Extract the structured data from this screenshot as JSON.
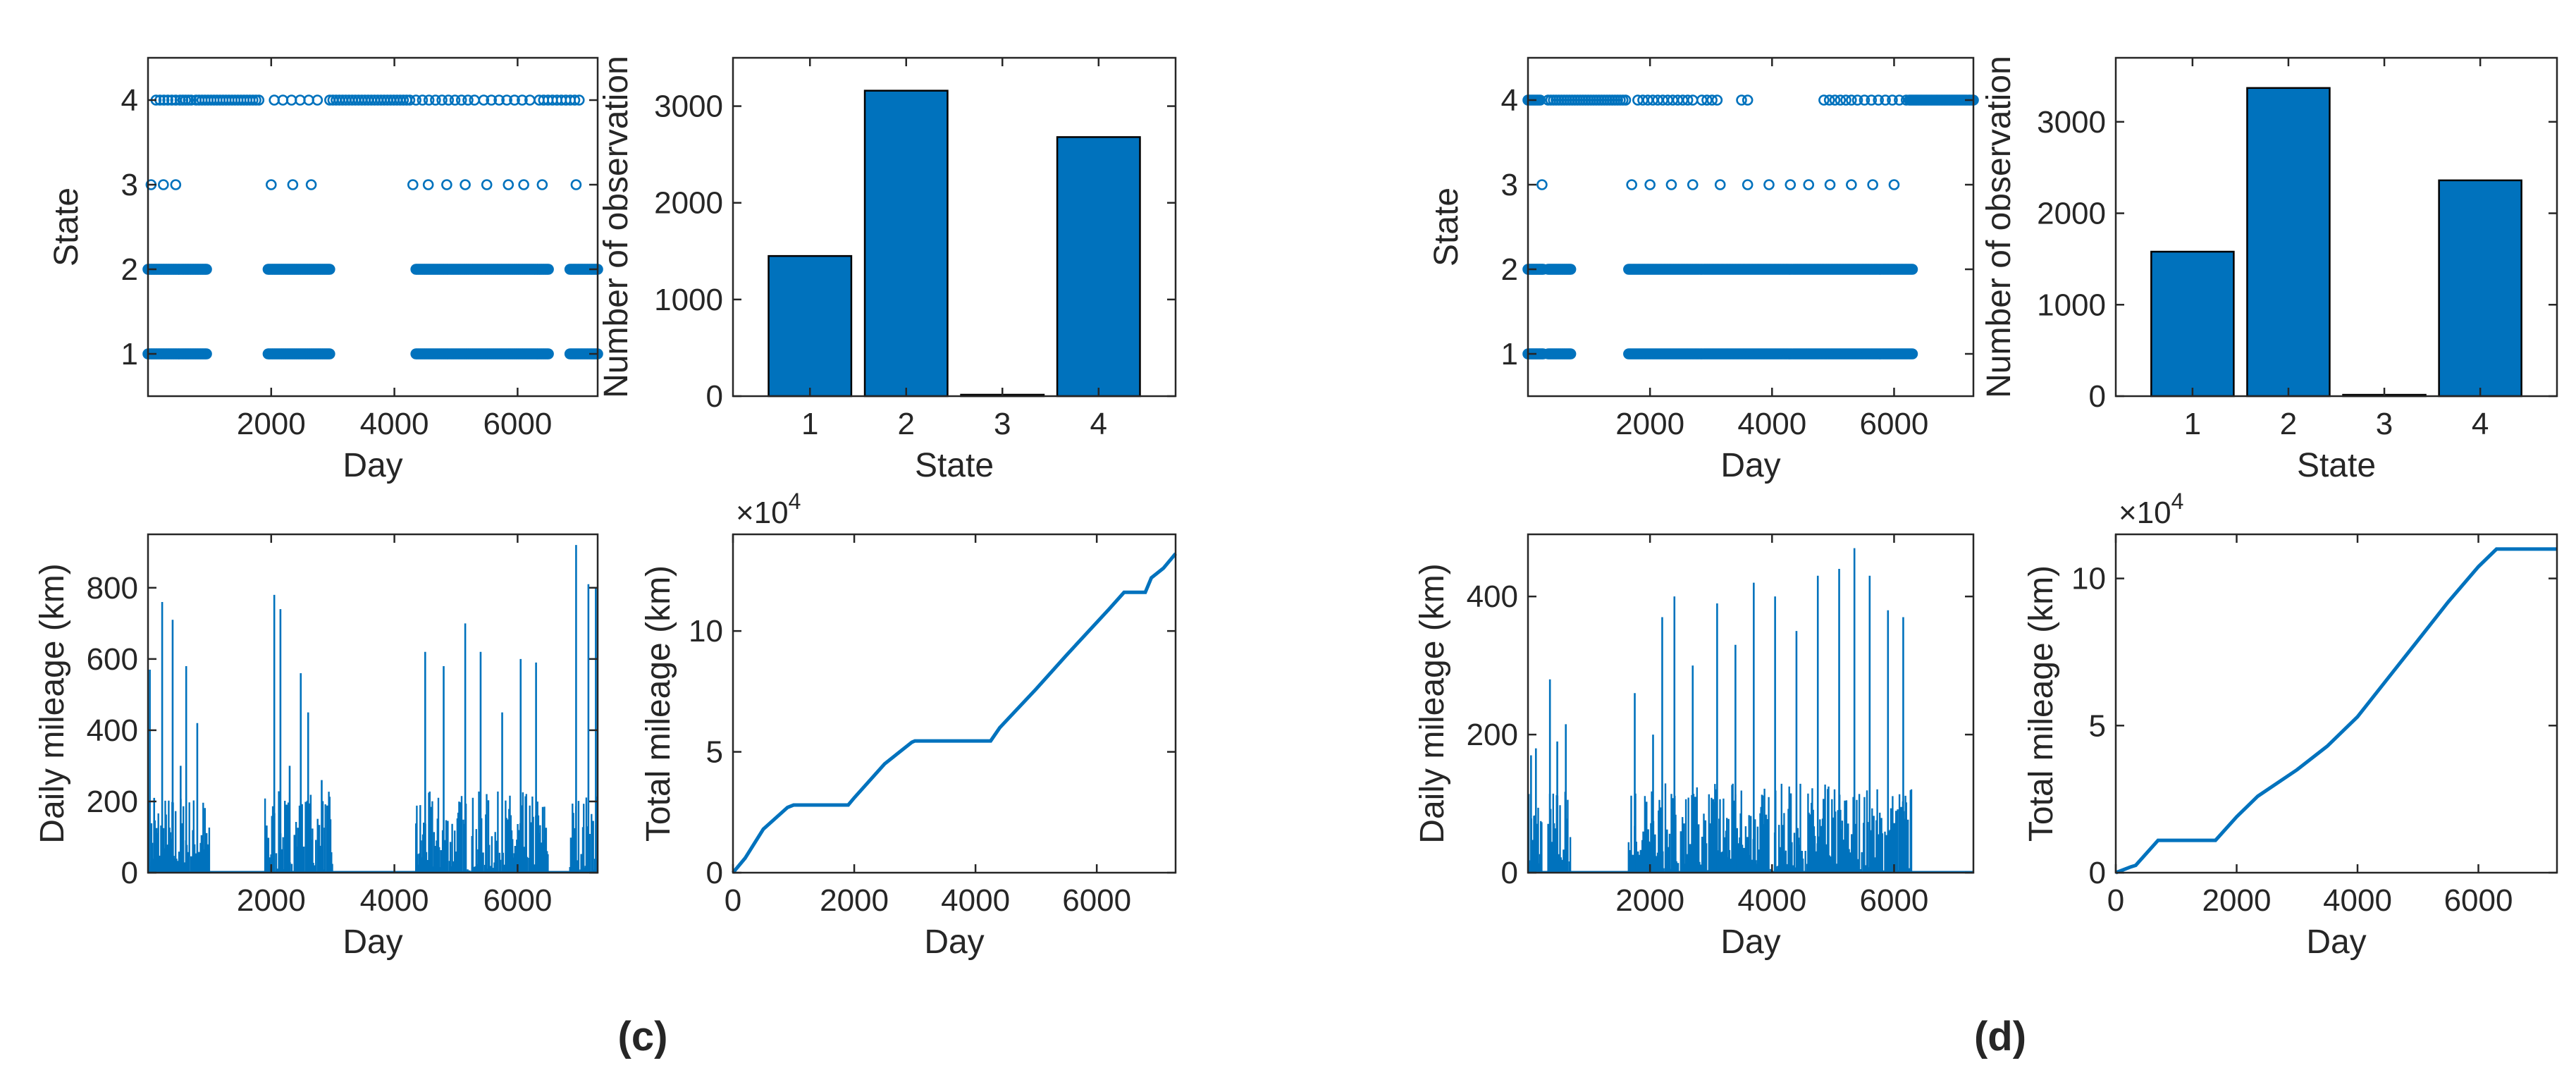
{
  "colors": {
    "series": "#0072BD",
    "axis": "#262626",
    "bar_edge": "#000000"
  },
  "panels": [
    {
      "label": "(c)",
      "chart_data": [
        {
          "type": "scatter",
          "xlabel": "Day",
          "ylabel": "State",
          "xlim": [
            0,
            7300
          ],
          "ylim": [
            0.5,
            4.5
          ],
          "xticks": [
            2000,
            4000,
            6000
          ],
          "yticks": [
            1,
            2,
            3,
            4
          ],
          "marker": "open-circle",
          "clusters": [
            {
              "state": 4,
              "runs": [
                [
                  130,
                  450,
                  6
                ],
                [
                  520,
                  700,
                  5
                ],
                [
                  780,
                  1800,
                  22
                ],
                [
                  2050,
                  2750,
                  6
                ],
                [
                  2950,
                  4250,
                  26
                ],
                [
                  4350,
                  5300,
                  10
                ],
                [
                  5450,
                  6200,
                  7
                ],
                [
                  6350,
                  7000,
                  10
                ]
              ]
            },
            {
              "state": 3,
              "runs": [
                [
                  50,
                  50,
                  1
                ],
                [
                  250,
                  250,
                  1
                ],
                [
                  450,
                  450,
                  1
                ],
                [
                  2000,
                  2000,
                  1
                ],
                [
                  2350,
                  2350,
                  1
                ],
                [
                  2650,
                  2650,
                  1
                ],
                [
                  4300,
                  4300,
                  1
                ],
                [
                  4550,
                  4550,
                  1
                ],
                [
                  4850,
                  4850,
                  1
                ],
                [
                  5150,
                  5150,
                  1
                ],
                [
                  5500,
                  5500,
                  1
                ],
                [
                  5850,
                  5850,
                  1
                ],
                [
                  6100,
                  6100,
                  1
                ],
                [
                  6400,
                  6400,
                  1
                ],
                [
                  6950,
                  6950,
                  1
                ]
              ]
            },
            {
              "state": 2,
              "runs": [
                [
                  0,
                  950,
                  60
                ],
                [
                  1950,
                  2950,
                  60
                ],
                [
                  4350,
                  6500,
                  120
                ],
                [
                  6850,
                  7300,
                  25
                ]
              ]
            },
            {
              "state": 1,
              "runs": [
                [
                  0,
                  950,
                  60
                ],
                [
                  1950,
                  2950,
                  60
                ],
                [
                  4350,
                  6500,
                  120
                ],
                [
                  6850,
                  7300,
                  25
                ]
              ]
            }
          ]
        },
        {
          "type": "bar",
          "xlabel": "State",
          "ylabel": "Number of observation",
          "categories": [
            "1",
            "2",
            "3",
            "4"
          ],
          "values": [
            1450,
            3160,
            15,
            2680
          ],
          "ylim": [
            0,
            3500
          ],
          "yticks": [
            0,
            1000,
            2000,
            3000
          ]
        },
        {
          "type": "bar",
          "xlabel": "Day",
          "ylabel": "Daily mileage (km)",
          "xlim": [
            0,
            7300
          ],
          "ylim": [
            0,
            950
          ],
          "xticks": [
            2000,
            4000,
            6000
          ],
          "yticks": [
            0,
            200,
            400,
            600,
            800
          ],
          "active_ranges": [
            [
              0,
              1000
            ],
            [
              1900,
              3000
            ],
            [
              4350,
              6500
            ],
            [
              6850,
              7300
            ]
          ],
          "peaks": [
            [
              30,
              570
            ],
            [
              100,
              210
            ],
            [
              230,
              760
            ],
            [
              400,
              710
            ],
            [
              530,
              300
            ],
            [
              620,
              580
            ],
            [
              800,
              420
            ],
            [
              2050,
              780
            ],
            [
              2150,
              740
            ],
            [
              2300,
              300
            ],
            [
              2480,
              560
            ],
            [
              2600,
              450
            ],
            [
              2820,
              260
            ],
            [
              4500,
              620
            ],
            [
              4800,
              580
            ],
            [
              5150,
              700
            ],
            [
              5400,
              620
            ],
            [
              5750,
              450
            ],
            [
              6050,
              600
            ],
            [
              6300,
              590
            ],
            [
              6950,
              920
            ],
            [
              7150,
              810
            ],
            [
              7270,
              800
            ]
          ],
          "typical_max": 230
        },
        {
          "type": "line",
          "xlabel": "Day",
          "ylabel": "Total mileage (km)",
          "exponent_label": "×10",
          "exponent": "4",
          "xlim": [
            0,
            7300
          ],
          "ylim": [
            0,
            14
          ],
          "xticks": [
            0,
            2000,
            4000,
            6000
          ],
          "yticks": [
            0,
            5,
            10
          ],
          "x": [
            0,
            200,
            500,
            900,
            1000,
            1900,
            2000,
            2500,
            2950,
            3000,
            4250,
            4400,
            5000,
            5500,
            6200,
            6450,
            6800,
            6900,
            7100,
            7300
          ],
          "y": [
            0,
            0.6,
            1.8,
            2.7,
            2.8,
            2.8,
            3.1,
            4.5,
            5.4,
            5.45,
            5.45,
            6.0,
            7.6,
            9.0,
            10.9,
            11.6,
            11.6,
            12.2,
            12.6,
            13.2
          ]
        }
      ]
    },
    {
      "label": "(d)",
      "chart_data": [
        {
          "type": "scatter",
          "xlabel": "Day",
          "ylabel": "State",
          "xlim": [
            0,
            7300
          ],
          "ylim": [
            0.5,
            4.5
          ],
          "xticks": [
            2000,
            4000,
            6000
          ],
          "yticks": [
            1,
            2,
            3,
            4
          ],
          "marker": "open-circle",
          "clusters": [
            {
              "state": 4,
              "runs": [
                [
                  0,
                  200,
                  8
                ],
                [
                  330,
                  1600,
                  30
                ],
                [
                  1800,
                  2700,
                  12
                ],
                [
                  2850,
                  3100,
                  4
                ],
                [
                  3500,
                  3600,
                  2
                ],
                [
                  4850,
                  5300,
                  6
                ],
                [
                  5400,
                  6200,
                  8
                ],
                [
                  6250,
                  7300,
                  40
                ]
              ]
            },
            {
              "state": 3,
              "runs": [
                [
                  230,
                  230,
                  1
                ],
                [
                  1700,
                  1700,
                  1
                ],
                [
                  2000,
                  2000,
                  1
                ],
                [
                  2350,
                  2350,
                  1
                ],
                [
                  2700,
                  2700,
                  1
                ],
                [
                  3150,
                  3150,
                  1
                ],
                [
                  3600,
                  3600,
                  1
                ],
                [
                  3950,
                  3950,
                  1
                ],
                [
                  4300,
                  4300,
                  1
                ],
                [
                  4600,
                  4600,
                  1
                ],
                [
                  4950,
                  4950,
                  1
                ],
                [
                  5300,
                  5300,
                  1
                ],
                [
                  5650,
                  5650,
                  1
                ],
                [
                  6000,
                  6000,
                  1
                ]
              ]
            },
            {
              "state": 2,
              "runs": [
                [
                  0,
                  250,
                  18
                ],
                [
                  330,
                  700,
                  22
                ],
                [
                  1650,
                  6300,
                  220
                ]
              ]
            },
            {
              "state": 1,
              "runs": [
                [
                  0,
                  250,
                  18
                ],
                [
                  330,
                  700,
                  22
                ],
                [
                  1650,
                  6300,
                  220
                ]
              ]
            }
          ]
        },
        {
          "type": "bar",
          "xlabel": "State",
          "ylabel": "Number of observation",
          "categories": [
            "1",
            "2",
            "3",
            "4"
          ],
          "values": [
            1580,
            3370,
            15,
            2360
          ],
          "ylim": [
            0,
            3700
          ],
          "yticks": [
            0,
            1000,
            2000,
            3000
          ]
        },
        {
          "type": "bar",
          "xlabel": "Day",
          "ylabel": "Daily mileage (km)",
          "xlim": [
            0,
            7300
          ],
          "ylim": [
            0,
            490
          ],
          "xticks": [
            2000,
            4000,
            6000
          ],
          "yticks": [
            0,
            200,
            400
          ],
          "active_ranges": [
            [
              0,
              250
            ],
            [
              330,
              700
            ],
            [
              1650,
              6300
            ]
          ],
          "peaks": [
            [
              50,
              170
            ],
            [
              130,
              180
            ],
            [
              360,
              280
            ],
            [
              480,
              190
            ],
            [
              620,
              215
            ],
            [
              1750,
              260
            ],
            [
              2050,
              200
            ],
            [
              2200,
              370
            ],
            [
              2400,
              400
            ],
            [
              2700,
              300
            ],
            [
              3100,
              390
            ],
            [
              3400,
              330
            ],
            [
              3700,
              420
            ],
            [
              4050,
              400
            ],
            [
              4400,
              350
            ],
            [
              4750,
              430
            ],
            [
              5100,
              440
            ],
            [
              5350,
              470
            ],
            [
              5600,
              430
            ],
            [
              5900,
              380
            ],
            [
              6150,
              370
            ]
          ],
          "typical_max": 130
        },
        {
          "type": "line",
          "xlabel": "Day",
          "ylabel": "Total mileage (km)",
          "exponent_label": "×10",
          "exponent": "4",
          "xlim": [
            0,
            7300
          ],
          "ylim": [
            0,
            11.5
          ],
          "xticks": [
            0,
            2000,
            4000,
            6000
          ],
          "yticks": [
            0,
            5,
            10
          ],
          "x": [
            0,
            250,
            330,
            700,
            1650,
            2000,
            2350,
            3000,
            3500,
            4000,
            4500,
            5000,
            5500,
            6000,
            6300,
            7300
          ],
          "y": [
            0,
            0.2,
            0.25,
            1.1,
            1.1,
            1.9,
            2.6,
            3.5,
            4.3,
            5.3,
            6.6,
            7.9,
            9.2,
            10.4,
            11.0,
            11.0
          ]
        }
      ]
    }
  ]
}
